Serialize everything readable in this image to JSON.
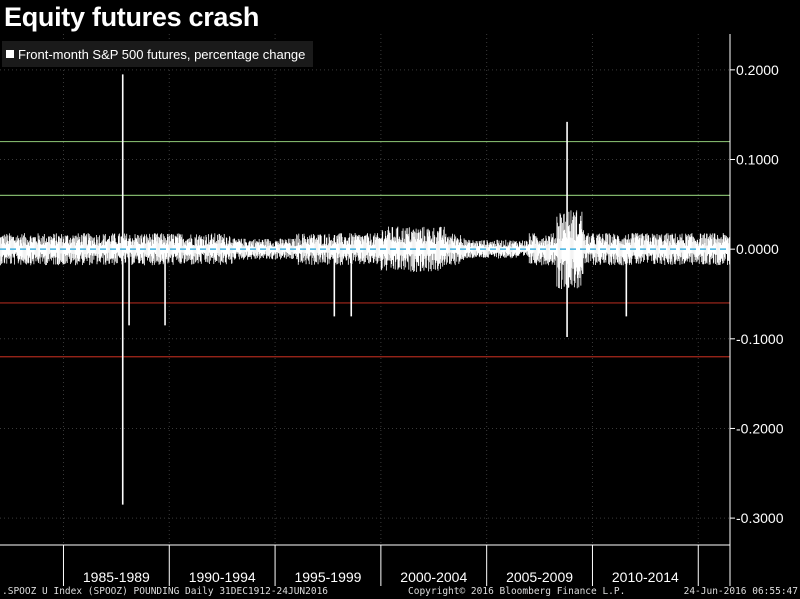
{
  "title": "Equity futures crash",
  "footer": {
    "left": ".SPOOZ U Index (SPOOZ) POUNDING  Daily 31DEC1912-24JUN2016",
    "center": "Copyright© 2016 Bloomberg Finance L.P.",
    "right": "24-Jun-2016 06:55:47"
  },
  "colors": {
    "background": "#000000",
    "bars": "#ffffff",
    "zero_line": "#3fb0e0",
    "upper_bands": "#7fb36a",
    "lower_bands": "#a8281c",
    "grid": "#3a3a3a"
  },
  "chart_data": {
    "type": "bar",
    "series": [
      {
        "name": "Front-month S&P 500 futures, percentage change",
        "x_start": 1982,
        "x_end": 2016.5,
        "spikes": [
          {
            "x": 1987.8,
            "value": 0.195
          },
          {
            "x": 1987.8,
            "value": -0.285
          },
          {
            "x": 2008.8,
            "value": 0.142
          },
          {
            "x": 2008.8,
            "value": -0.098
          },
          {
            "x": 1988.1,
            "value": -0.085
          },
          {
            "x": 1989.8,
            "value": -0.085
          },
          {
            "x": 1997.8,
            "value": -0.075
          },
          {
            "x": 1998.6,
            "value": -0.075
          },
          {
            "x": 2011.6,
            "value": -0.075
          }
        ]
      }
    ],
    "x_categories": [
      "1985-1989",
      "1990-1994",
      "1995-1999",
      "2000-2004",
      "2005-2009",
      "2010-2014"
    ],
    "y_ticks": [
      "0.2000",
      "0.1000",
      "0.0000",
      "-0.1000",
      "-0.2000",
      "-0.3000"
    ],
    "y_tick_values": [
      0.2,
      0.1,
      0.0,
      -0.1,
      -0.2,
      -0.3
    ],
    "ylim": [
      -0.33,
      0.24
    ],
    "reference_lines": [
      {
        "value": 0.12,
        "color": "upper"
      },
      {
        "value": 0.06,
        "color": "upper"
      },
      {
        "value": -0.06,
        "color": "lower"
      },
      {
        "value": -0.12,
        "color": "lower"
      }
    ],
    "zero_line_style": "dashed",
    "grid": true,
    "legend_position": "top-left",
    "y_axis_side": "right"
  }
}
